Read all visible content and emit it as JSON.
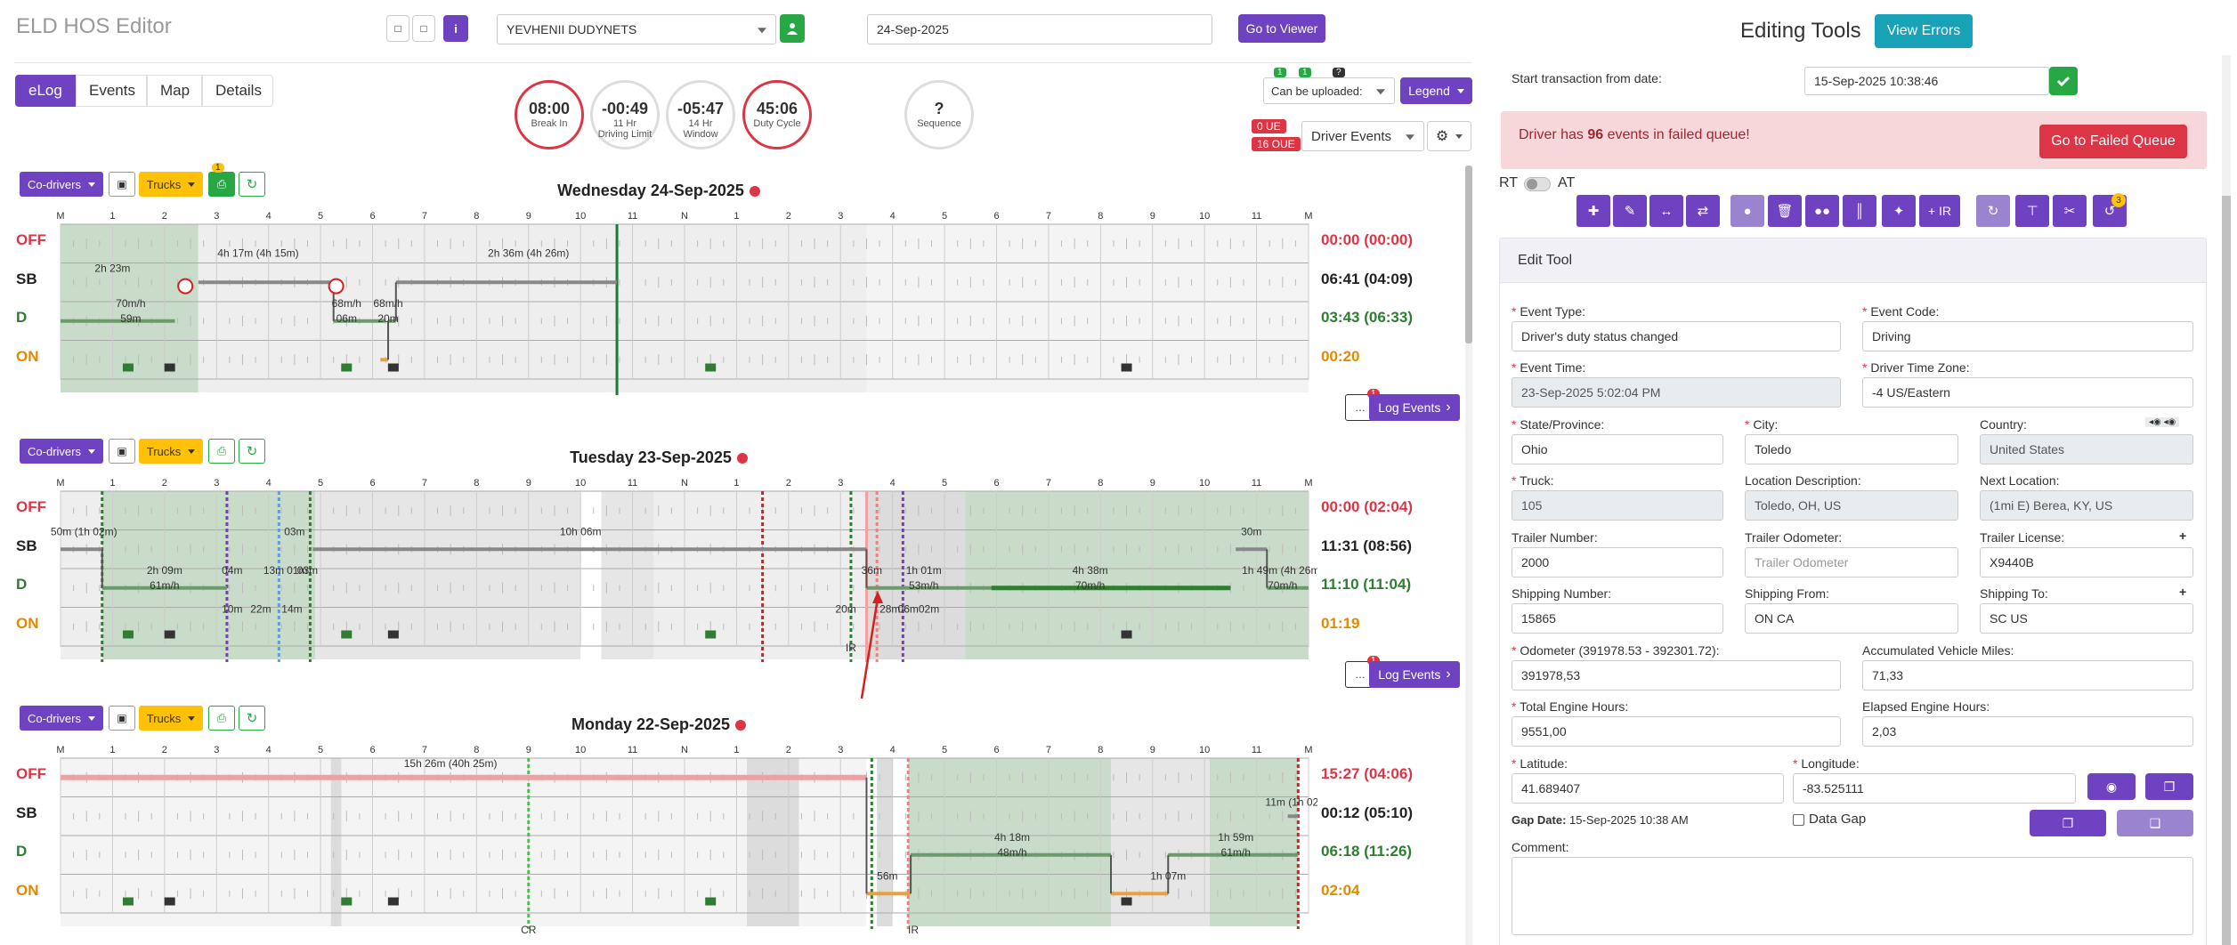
{
  "header": {
    "title": "ELD HOS Editor",
    "driver": "YEVHENII DUDYNETS",
    "date": "24-Sep-2025",
    "go_to_viewer": "Go to Viewer"
  },
  "tabs": [
    "eLog",
    "Events",
    "Map",
    "Details"
  ],
  "gauges": [
    {
      "value": "08:00",
      "label1": "Break In",
      "label2": ""
    },
    {
      "value": "-00:49",
      "label1": "11 Hr",
      "label2": "Driving Limit"
    },
    {
      "value": "-05:47",
      "label1": "14 Hr",
      "label2": "Window"
    },
    {
      "value": "45:06",
      "label1": "Duty Cycle",
      "label2": ""
    },
    {
      "value": "?",
      "label1": "Sequence",
      "label2": ""
    }
  ],
  "gauge_colors": {
    "red": "#dc3545",
    "grey": "#dddddd"
  },
  "controls": {
    "upload_select": "Can be uploaded:",
    "legend": "Legend",
    "driver_events": "Driver Events",
    "ue_badge": "0 UE",
    "oue_badge": "16 OUE",
    "mini_badges": [
      "1",
      "1",
      "?"
    ]
  },
  "toolbar": {
    "codrivers": "Co-drivers",
    "trucks": "Trucks",
    "truck_badge": "1"
  },
  "hour_labels": [
    "M",
    "1",
    "2",
    "3",
    "4",
    "5",
    "6",
    "7",
    "8",
    "9",
    "10",
    "11",
    "N",
    "1",
    "2",
    "3",
    "4",
    "5",
    "6",
    "7",
    "8",
    "9",
    "10",
    "11",
    "M"
  ],
  "status_labels": [
    "OFF",
    "SB",
    "D",
    "ON"
  ],
  "status_colors": {
    "OFF": "#dc3545",
    "SB": "#222222",
    "D": "#2e7d32",
    "ON": "#e08a00"
  },
  "days": [
    {
      "title": "Wednesday 24-Sep-2025",
      "totals": [
        "00:00 (00:00)",
        "06:41 (04:09)",
        "03:43 (06:33)",
        "00:20"
      ],
      "log_events": "Log Events",
      "chat_badge": "1",
      "labels": [
        "2h 23m",
        "4h 17m (4h 15m)",
        "2h 36m (4h 26m)",
        "70m/h",
        "59m",
        "68m/h",
        "06m",
        "68m/h",
        "20m"
      ]
    },
    {
      "title": "Tuesday 23-Sep-2025",
      "totals": [
        "00:00 (02:04)",
        "11:31 (08:56)",
        "11:10 (11:04)",
        "01:19"
      ],
      "log_events": "Log Events",
      "chat_badge": "1",
      "labels": [
        "50m (1h 02m)",
        "03m",
        "10h 06m",
        "30m",
        "2h 09m",
        "61m/h",
        "04m",
        "13m",
        "01m",
        "03m",
        "36m",
        "1h 01m",
        "53m/h",
        "4h 38m",
        "70m/h",
        "1h 49m (4h 26m)",
        "70m/h",
        "10m",
        "22m",
        "14m",
        "28m",
        "06m",
        "02m",
        "20m",
        "IR"
      ]
    },
    {
      "title": "Monday 22-Sep-2025",
      "totals": [
        "15:27 (04:06)",
        "00:12 (05:10)",
        "06:18 (11:26)",
        "02:04"
      ],
      "log_events": "Log Events",
      "chat_badge": "1",
      "labels": [
        "15h 26m (40h 25m)",
        "11m (1h 02m)",
        "4h 18m",
        "48m/h",
        "1h 59m",
        "61m/h",
        "56m",
        "1h 07m",
        "CR",
        "IR"
      ]
    }
  ],
  "editor": {
    "title": "Editing Tools",
    "view_errors": "View Errors",
    "start_tx_label": "Start transaction from date:",
    "start_tx_value": "15-Sep-2025 10:38:46",
    "alert_pre": "Driver has ",
    "alert_count": "96",
    "alert_post": " events in failed queue!",
    "failed_queue_btn": "Go to Failed Queue",
    "toggle_rt": "RT",
    "toggle_at": "AT",
    "tool_badge": "3",
    "tool_ir": "+ IR",
    "edit_tool": "Edit Tool",
    "fields": {
      "event_type_label": "Event Type:",
      "event_type": "Driver's duty status changed",
      "event_code_label": "Event Code:",
      "event_code": "Driving",
      "event_time_label": "Event Time:",
      "event_time": "23-Sep-2025 5:02:04 PM",
      "driver_tz_label": "Driver Time Zone:",
      "driver_tz": "-4 US/Eastern",
      "state_label": "State/Province:",
      "state": "Ohio",
      "city_label": "City:",
      "city": "Toledo",
      "country_label": "Country:",
      "country": "United States",
      "truck_label": "Truck:",
      "truck": "105",
      "loc_desc_label": "Location Description:",
      "loc_desc": "Toledo, OH, US",
      "next_loc_label": "Next Location:",
      "next_loc": "(1mi E) Berea, KY, US",
      "trailer_num_label": "Trailer Number:",
      "trailer_num": "2000",
      "trailer_odo_label": "Trailer Odometer:",
      "trailer_odo_ph": "Trailer Odometer",
      "trailer_lic_label": "Trailer License:",
      "trailer_lic": "X9440B",
      "ship_num_label": "Shipping Number:",
      "ship_num": "15865",
      "ship_from_label": "Shipping From:",
      "ship_from": "ON CA",
      "ship_to_label": "Shipping To:",
      "ship_to": "SC US",
      "odometer_label": "Odometer (391978.53 - 392301.72):",
      "odometer": "391978,53",
      "acc_miles_label": "Accumulated Vehicle Miles:",
      "acc_miles": "71,33",
      "engine_hours_label": "Total Engine Hours:",
      "engine_hours": "9551,00",
      "elapsed_hours_label": "Elapsed Engine Hours:",
      "elapsed_hours": "2,03",
      "lat_label": "Latitude:",
      "lat": "41.689407",
      "lon_label": "Longitude:",
      "lon": "-83.525111",
      "gap_date_label": "Gap Date:",
      "gap_date": "15-Sep-2025 10:38 AM",
      "data_gap": "Data Gap",
      "comment_label": "Comment:"
    }
  }
}
